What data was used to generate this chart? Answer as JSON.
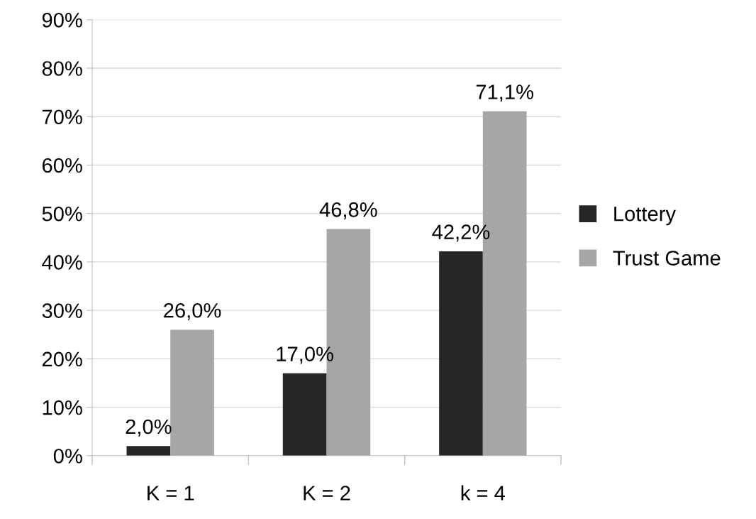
{
  "chart_data": {
    "type": "bar",
    "categories": [
      "K = 1",
      "K = 2",
      "k = 4"
    ],
    "series": [
      {
        "name": "Lottery",
        "color": "#262626",
        "values": [
          2.0,
          17.0,
          42.2
        ],
        "value_labels": [
          "2,0%",
          "17,0%",
          "42,2%"
        ]
      },
      {
        "name": "Trust Game",
        "color": "#a6a6a6",
        "values": [
          26.0,
          46.8,
          71.1
        ],
        "value_labels": [
          "26,0%",
          "46,8%",
          "71,1%"
        ]
      }
    ],
    "ylim": [
      0,
      90
    ],
    "yticks": [
      {
        "value": 0,
        "label": "0%"
      },
      {
        "value": 10,
        "label": "10%"
      },
      {
        "value": 20,
        "label": "20%"
      },
      {
        "value": 30,
        "label": "30%"
      },
      {
        "value": 40,
        "label": "40%"
      },
      {
        "value": 50,
        "label": "50%"
      },
      {
        "value": 60,
        "label": "60%"
      },
      {
        "value": 70,
        "label": "70%"
      },
      {
        "value": 80,
        "label": "80%"
      },
      {
        "value": 90,
        "label": "90%"
      }
    ],
    "grid": "y",
    "legend": "right"
  }
}
